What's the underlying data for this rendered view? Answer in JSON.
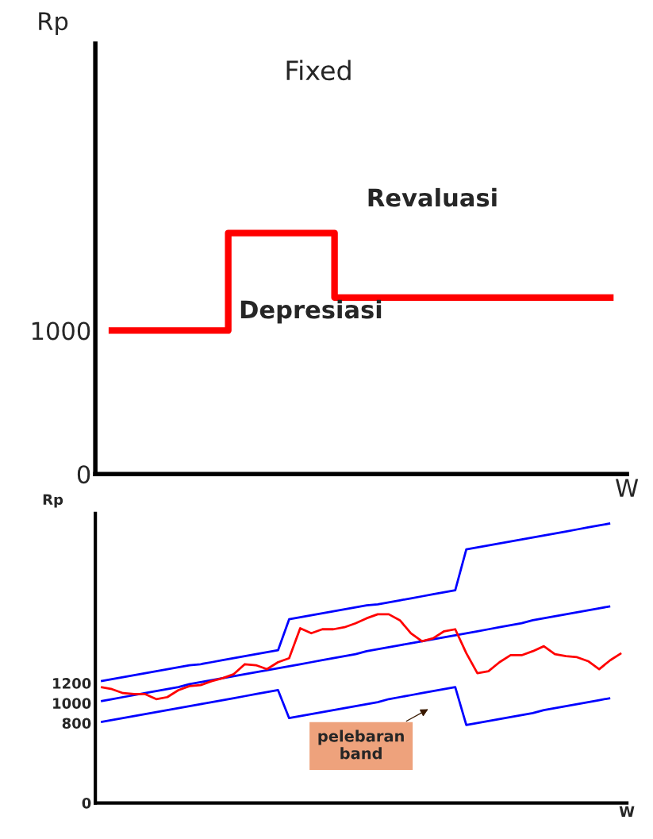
{
  "chart_data": [
    {
      "type": "step",
      "title": "Fixed",
      "ylabel": "Rp",
      "xlabel": "W",
      "ylim": [
        0,
        3000
      ],
      "yticks": [
        0,
        1000
      ],
      "tick_labels": "y",
      "grid": false,
      "categories": [
        null,
        null,
        null,
        null,
        null,
        null,
        null,
        null,
        null,
        null,
        null,
        null,
        null,
        null,
        null,
        null,
        null,
        null,
        null,
        null
      ],
      "series": [
        {
          "color": "#ff0000",
          "values": [
            1000,
            1000,
            1000,
            1000,
            1000,
            1680,
            1680,
            1680,
            1680,
            1230,
            1230,
            1230,
            1230,
            1230,
            1230,
            1230,
            1230,
            1230,
            1230,
            1230
          ]
        }
      ],
      "annotations": [
        "Revaluasi",
        "Depresiasi"
      ]
    },
    {
      "type": "line",
      "ylabel": "Rp",
      "xlabel": "W",
      "ylim": [
        0,
        2900
      ],
      "yticks": [
        0,
        800,
        1000,
        1200
      ],
      "tick_labels": "y",
      "grid": false,
      "categories": [
        null,
        null,
        null,
        null,
        null,
        null,
        null,
        null,
        null,
        null,
        null,
        null,
        null,
        null,
        null,
        null,
        null,
        null,
        null,
        null,
        null,
        null,
        null,
        null,
        null,
        null,
        null,
        null,
        null,
        null,
        null,
        null,
        null,
        null,
        null,
        null,
        null,
        null,
        null,
        null,
        null,
        null,
        null,
        null,
        null,
        null,
        null,
        null
      ],
      "series": [
        {
          "color": "#0000ff",
          "values": [
            1220,
            1240,
            1260,
            1280,
            1300,
            1320,
            1340,
            1360,
            1380,
            1390,
            1410,
            1430,
            1450,
            1470,
            1490,
            1510,
            1530,
            1840,
            1860,
            1880,
            1900,
            1920,
            1940,
            1960,
            1980,
            1990,
            2010,
            2030,
            2050,
            2070,
            2090,
            2110,
            2130,
            2540,
            2560,
            2580,
            2600,
            2620,
            2640,
            2660,
            2680,
            2700,
            2720,
            2740,
            2760,
            2780,
            2800,
            null
          ]
        },
        {
          "color": "#0000ff",
          "values": [
            1020,
            1040,
            1060,
            1080,
            1100,
            1120,
            1140,
            1160,
            1190,
            1210,
            1230,
            1250,
            1270,
            1290,
            1310,
            1330,
            1350,
            1370,
            1390,
            1410,
            1430,
            1450,
            1470,
            1490,
            1520,
            1540,
            1560,
            1580,
            1600,
            1620,
            1640,
            1660,
            1680,
            1700,
            1720,
            1740,
            1760,
            1780,
            1800,
            1830,
            1850,
            1870,
            1890,
            1910,
            1930,
            1950,
            1970,
            null
          ]
        },
        {
          "color": "#0000ff",
          "values": [
            810,
            830,
            850,
            870,
            890,
            910,
            930,
            950,
            970,
            990,
            1010,
            1030,
            1050,
            1070,
            1090,
            1110,
            1130,
            850,
            870,
            890,
            910,
            930,
            950,
            970,
            990,
            1010,
            1040,
            1060,
            1080,
            1100,
            1120,
            1140,
            1160,
            780,
            800,
            820,
            840,
            860,
            880,
            900,
            930,
            950,
            970,
            990,
            1010,
            1030,
            1050,
            null
          ]
        },
        {
          "color": "#ff0000",
          "values": [
            1160,
            1140,
            1100,
            1090,
            1090,
            1040,
            1060,
            1130,
            1170,
            1180,
            1220,
            1250,
            1290,
            1390,
            1380,
            1340,
            1410,
            1450,
            1750,
            1700,
            1740,
            1740,
            1760,
            1800,
            1850,
            1890,
            1890,
            1830,
            1700,
            1620,
            1650,
            1720,
            1740,
            1500,
            1300,
            1320,
            1410,
            1480,
            1480,
            1520,
            1570,
            1490,
            1470,
            1460,
            1420,
            1340,
            1430,
            1500
          ]
        }
      ],
      "annotations": [
        {
          "text": "pelebaran\nband",
          "y": 950
        }
      ]
    }
  ]
}
